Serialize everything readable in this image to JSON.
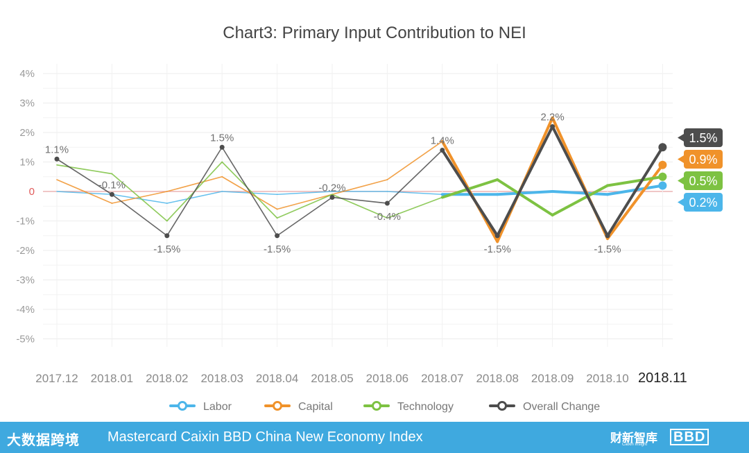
{
  "chart_data": {
    "type": "line",
    "title": "Chart3: Primary Input Contribution to NEI",
    "categories": [
      "2017.12",
      "2018.01",
      "2018.02",
      "2018.03",
      "2018.04",
      "2018.05",
      "2018.06",
      "2018.07",
      "2018.08",
      "2018.09",
      "2018.10",
      "2018.11"
    ],
    "ylim": [
      -5,
      4
    ],
    "y_ticks": [
      4,
      3,
      2,
      1,
      0,
      -1,
      -2,
      -3,
      -4,
      -5
    ],
    "y_tick_labels": [
      "4%",
      "3%",
      "2%",
      "1%",
      "0",
      "-1%",
      "-2%",
      "-3%",
      "-4%",
      "-5%"
    ],
    "grid": true,
    "legend_position": "bottom",
    "series": [
      {
        "name": "Labor",
        "color": "#4cb6ea",
        "values": [
          0.0,
          -0.1,
          -0.4,
          0.0,
          -0.1,
          0.0,
          0.0,
          -0.1,
          -0.1,
          0.0,
          -0.1,
          0.2
        ]
      },
      {
        "name": "Capital",
        "color": "#f0922a",
        "values": [
          0.4,
          -0.4,
          0.0,
          0.5,
          -0.6,
          -0.1,
          0.4,
          1.7,
          -1.7,
          2.5,
          -1.6,
          0.9
        ]
      },
      {
        "name": "Technology",
        "color": "#7dc242",
        "values": [
          0.9,
          0.6,
          -1.0,
          1.0,
          -0.9,
          -0.1,
          -0.9,
          -0.2,
          0.4,
          -0.8,
          0.2,
          0.5
        ]
      },
      {
        "name": "Overall Change",
        "color": "#4d4d4d",
        "values": [
          1.1,
          -0.1,
          -1.5,
          1.5,
          -1.5,
          -0.2,
          -0.4,
          1.4,
          -1.5,
          2.2,
          -1.5,
          1.5
        ]
      }
    ],
    "annotations": [
      {
        "index": 0,
        "text": "1.1%",
        "placement": "above"
      },
      {
        "index": 1,
        "text": "-0.1%",
        "placement": "above"
      },
      {
        "index": 2,
        "text": "-1.5%",
        "placement": "below"
      },
      {
        "index": 3,
        "text": "1.5%",
        "placement": "above"
      },
      {
        "index": 4,
        "text": "-1.5%",
        "placement": "below"
      },
      {
        "index": 5,
        "text": "-0.2%",
        "placement": "above"
      },
      {
        "index": 6,
        "text": "-0.4%",
        "placement": "below"
      },
      {
        "index": 7,
        "text": "1.4%",
        "placement": "above"
      },
      {
        "index": 8,
        "text": "-1.5%",
        "placement": "below"
      },
      {
        "index": 9,
        "text": "2.2%",
        "placement": "above"
      },
      {
        "index": 10,
        "text": "-1.5%",
        "placement": "below"
      }
    ],
    "end_labels": [
      {
        "series": "Overall Change",
        "text": "1.5%",
        "color": "#4d4d4d"
      },
      {
        "series": "Capital",
        "text": "0.9%",
        "color": "#f0922a"
      },
      {
        "series": "Technology",
        "text": "0.5%",
        "color": "#7dc242"
      },
      {
        "series": "Labor",
        "text": "0.2%",
        "color": "#4cb6ea"
      }
    ],
    "highlighted_category": "2018.11"
  },
  "footer": {
    "logo_left": "大数据跨境",
    "title": "Mastercard Caixin BBD China New Economy Index",
    "logo_caixin": "财新智库",
    "logo_caixin_sub": "Caixin Insight",
    "logo_bbd": "BBD"
  },
  "colors": {
    "footer_bg": "#3fa9df",
    "zero_line": "#e8a3a3",
    "grid": "#ececec"
  }
}
